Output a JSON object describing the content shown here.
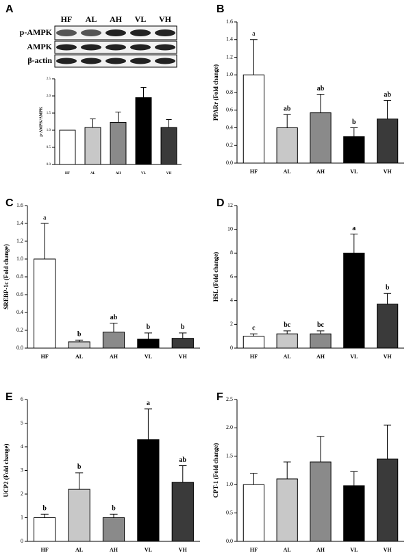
{
  "blot": {
    "lanes": [
      "HF",
      "AL",
      "AH",
      "VL",
      "VH"
    ],
    "bands": [
      "p-AMPK",
      "AMPK",
      "β-actin"
    ]
  },
  "chart_data": [
    {
      "type": "bar",
      "panel": "A",
      "ylabel": "p-AMPK/AMPK",
      "categories": [
        "HF",
        "AL",
        "AH",
        "VL",
        "VH"
      ],
      "values": [
        1.0,
        1.08,
        1.23,
        1.95,
        1.08
      ],
      "errors": [
        0,
        0.25,
        0.3,
        0.3,
        0.23
      ],
      "colors": [
        "#ffffff",
        "#c8c8c8",
        "#8a8a8a",
        "#000000",
        "#3a3a3a"
      ],
      "ylim": [
        0,
        2.5
      ],
      "yticks": [
        {
          "value": 0,
          "label": "0.0"
        },
        0.5,
        {
          "value": 1,
          "label": "1.0"
        },
        1.5,
        {
          "value": 2,
          "label": "2.0"
        },
        2.5
      ]
    },
    {
      "type": "bar",
      "panel": "B",
      "ylabel": "PPARr (Fold change)",
      "categories": [
        "HF",
        "AL",
        "AH",
        "VL",
        "VH"
      ],
      "values": [
        1.0,
        0.4,
        0.57,
        0.3,
        0.5
      ],
      "errors": [
        0.4,
        0.15,
        0.21,
        0.1,
        0.21
      ],
      "letters": [
        "a",
        "ab",
        "ab",
        "b",
        "ab"
      ],
      "colors": [
        "#ffffff",
        "#c8c8c8",
        "#8a8a8a",
        "#000000",
        "#3a3a3a"
      ],
      "ylim": [
        0,
        1.6
      ],
      "yticks": [
        {
          "value": 0,
          "label": "0.0"
        },
        0.2,
        0.4,
        0.6,
        0.8,
        {
          "value": 1,
          "label": "1.0"
        },
        1.2,
        1.4,
        1.6
      ]
    },
    {
      "type": "bar",
      "panel": "C",
      "ylabel": "SREBP-1c (Fold change)",
      "categories": [
        "HF",
        "AL",
        "AH",
        "VL",
        "VH"
      ],
      "values": [
        1.0,
        0.07,
        0.18,
        0.1,
        0.11
      ],
      "errors": [
        0.4,
        0.02,
        0.1,
        0.07,
        0.06
      ],
      "letters": [
        "a",
        "b",
        "ab",
        "b",
        "b"
      ],
      "colors": [
        "#ffffff",
        "#c8c8c8",
        "#8a8a8a",
        "#000000",
        "#3a3a3a"
      ],
      "ylim": [
        0,
        1.6
      ],
      "yticks": [
        {
          "value": 0,
          "label": "0.0"
        },
        0.2,
        0.4,
        0.6,
        0.8,
        {
          "value": 1,
          "label": "1.0"
        },
        1.2,
        1.4,
        1.6
      ]
    },
    {
      "type": "bar",
      "panel": "D",
      "ylabel": "HSL (Fold change)",
      "categories": [
        "HF",
        "AL",
        "AH",
        "VL",
        "VH"
      ],
      "values": [
        1.0,
        1.2,
        1.2,
        8.0,
        3.7
      ],
      "errors": [
        0.2,
        0.25,
        0.25,
        1.6,
        0.9
      ],
      "letters": [
        "c",
        "bc",
        "bc",
        "a",
        "b"
      ],
      "colors": [
        "#ffffff",
        "#c8c8c8",
        "#8a8a8a",
        "#000000",
        "#3a3a3a"
      ],
      "ylim": [
        0,
        12
      ],
      "yticks": [
        0,
        2,
        4,
        6,
        8,
        10,
        12
      ]
    },
    {
      "type": "bar",
      "panel": "E",
      "ylabel": "UCP2 (Fold change)",
      "categories": [
        "HF",
        "AL",
        "AH",
        "VL",
        "VH"
      ],
      "values": [
        1.0,
        2.2,
        1.0,
        4.3,
        2.5
      ],
      "errors": [
        0.15,
        0.7,
        0.15,
        1.3,
        0.7
      ],
      "letters": [
        "b",
        "b",
        "b",
        "a",
        "ab"
      ],
      "colors": [
        "#ffffff",
        "#c8c8c8",
        "#8a8a8a",
        "#000000",
        "#3a3a3a"
      ],
      "ylim": [
        0,
        6
      ],
      "yticks": [
        0,
        1,
        2,
        3,
        4,
        5,
        6
      ]
    },
    {
      "type": "bar",
      "panel": "F",
      "ylabel": "CPT-1 (Fold change)",
      "categories": [
        "HF",
        "AL",
        "AH",
        "VL",
        "VH"
      ],
      "values": [
        1.0,
        1.1,
        1.4,
        0.98,
        1.45
      ],
      "errors": [
        0.2,
        0.3,
        0.45,
        0.25,
        0.6
      ],
      "colors": [
        "#ffffff",
        "#c8c8c8",
        "#8a8a8a",
        "#000000",
        "#3a3a3a"
      ],
      "ylim": [
        0,
        2.5
      ],
      "yticks": [
        {
          "value": 0,
          "label": "0.0"
        },
        0.5,
        {
          "value": 1,
          "label": "1.0"
        },
        1.5,
        {
          "value": 2,
          "label": "2.0"
        },
        2.5
      ]
    }
  ]
}
